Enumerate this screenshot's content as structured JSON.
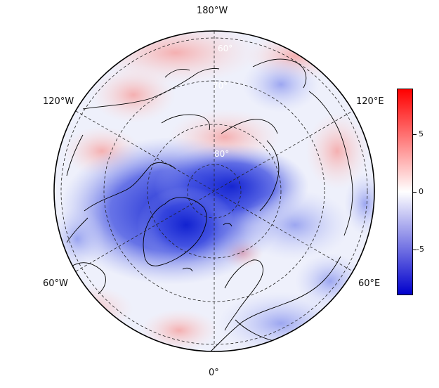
{
  "map": {
    "projection": "north-polar-stereographic",
    "longitude_labels": {
      "top": "180°W",
      "upper_left": "120°W",
      "upper_right": "120°E",
      "lower_left": "60°W",
      "lower_right": "60°E",
      "bottom": "0°"
    },
    "latitude_labels": [
      "60°",
      "70°",
      "80°"
    ]
  },
  "colorbar": {
    "ticks": [
      "5",
      "0",
      "-5"
    ],
    "tick_values": [
      5,
      0,
      -5
    ],
    "min": -8.5,
    "max": 8.5,
    "colors": {
      "low": "#0000cc",
      "mid": "#ffffff",
      "high": "#ff0000"
    }
  }
}
